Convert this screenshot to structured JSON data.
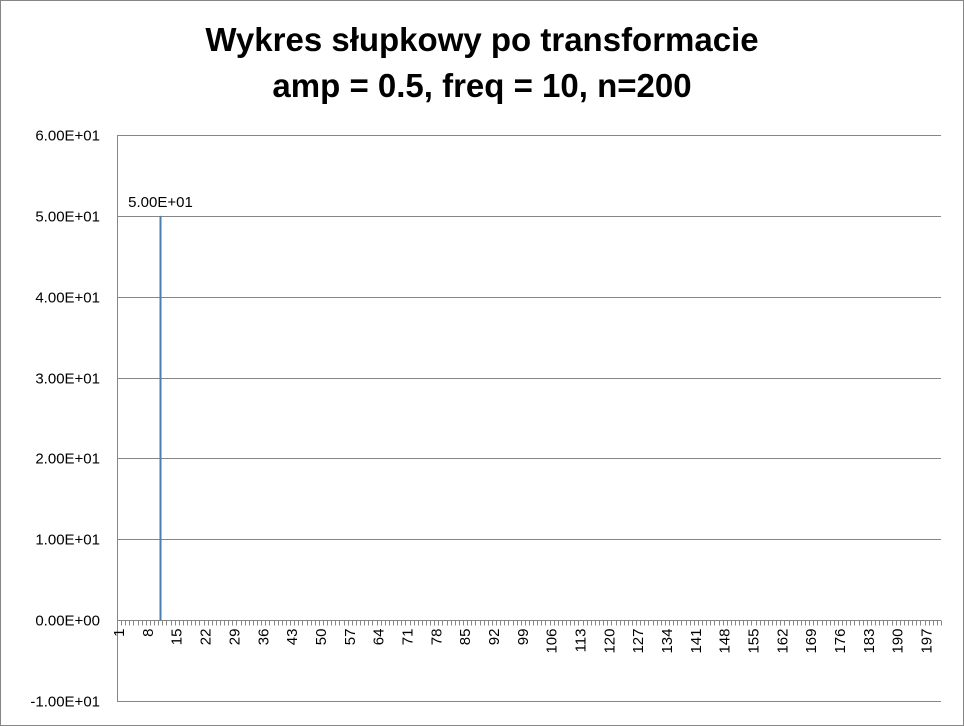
{
  "chart_data": {
    "type": "bar",
    "title": [
      "Wykres słupkowy po transformacie",
      "amp = 0.5, freq = 10, n=200"
    ],
    "xlabel": "",
    "ylabel": "",
    "ylim": [
      -10,
      60
    ],
    "yticks": [
      60,
      50,
      40,
      30,
      20,
      10,
      0,
      -10
    ],
    "ytick_labels": [
      "6.00E+01",
      "5.00E+01",
      "4.00E+01",
      "3.00E+01",
      "2.00E+01",
      "1.00E+01",
      "0.00E+00",
      "-1.00E+01"
    ],
    "x_categories_count": 200,
    "xtick_labels": [
      "1",
      "8",
      "15",
      "22",
      "29",
      "36",
      "43",
      "50",
      "57",
      "64",
      "71",
      "78",
      "85",
      "92",
      "99",
      "106",
      "113",
      "120",
      "127",
      "134",
      "141",
      "148",
      "155",
      "162",
      "169",
      "176",
      "183",
      "190",
      "197"
    ],
    "grid": true,
    "legend": "none",
    "series": [
      {
        "color": "#4a7eb0",
        "points": [
          {
            "x": 11,
            "value": 50,
            "label": "5.00E+01"
          }
        ]
      }
    ]
  }
}
